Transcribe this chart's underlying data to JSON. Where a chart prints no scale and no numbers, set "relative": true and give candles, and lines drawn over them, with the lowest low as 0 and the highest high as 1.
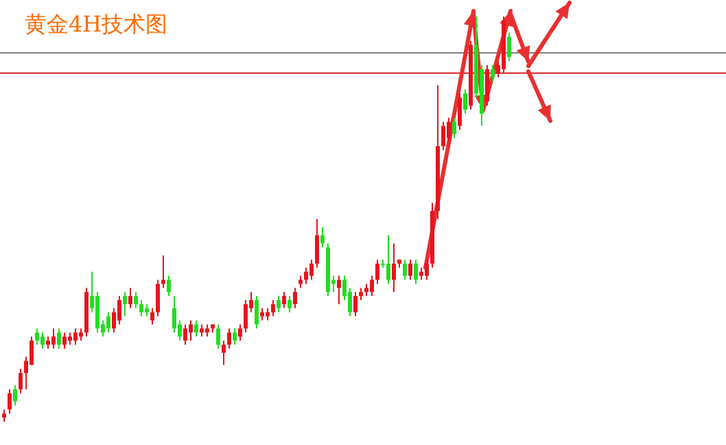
{
  "chart_data": {
    "type": "candlestick",
    "title": "黄金4H技术图",
    "relative": true,
    "categories": [
      null,
      null,
      null,
      null,
      null,
      null,
      null,
      null,
      null,
      null,
      null,
      null,
      null,
      null,
      null,
      null,
      null,
      null,
      null,
      null,
      null,
      null,
      null,
      null,
      null,
      null,
      null,
      null,
      null,
      null,
      null,
      null,
      null,
      null,
      null,
      null,
      null,
      null,
      null,
      null,
      null,
      null,
      null,
      null,
      null,
      null,
      null,
      null,
      null,
      null,
      null,
      null,
      null,
      null,
      null,
      null,
      null,
      null,
      null,
      null,
      null,
      null,
      null,
      null,
      null,
      null,
      null,
      null,
      null,
      null,
      null,
      null,
      null,
      null,
      null,
      null,
      null,
      null,
      null,
      null,
      null,
      null,
      null,
      null,
      null,
      null,
      null,
      null,
      null,
      null,
      null,
      null,
      null
    ],
    "ohlc": [
      [
        0.01,
        0.03,
        0,
        0.02
      ],
      [
        0.03,
        0.08,
        0.02,
        0.07
      ],
      [
        0.08,
        0.09,
        0.04,
        0.05
      ],
      [
        0.08,
        0.13,
        0.07,
        0.12
      ],
      [
        0.12,
        0.16,
        0.08,
        0.15
      ],
      [
        0.14,
        0.21,
        0.14,
        0.2
      ],
      [
        0.22,
        0.23,
        0.19,
        0.2
      ],
      [
        0.21,
        0.22,
        0.18,
        0.19
      ],
      [
        0.19,
        0.21,
        0.18,
        0.2
      ],
      [
        0.19,
        0.23,
        0.18,
        0.21
      ],
      [
        0.22,
        0.23,
        0.18,
        0.19
      ],
      [
        0.19,
        0.22,
        0.18,
        0.21
      ],
      [
        0.2,
        0.22,
        0.19,
        0.21
      ],
      [
        0.2,
        0.23,
        0.19,
        0.22
      ],
      [
        0.21,
        0.23,
        0.2,
        0.22
      ],
      [
        0.22,
        0.33,
        0.21,
        0.32
      ],
      [
        0.31,
        0.37,
        0.27,
        0.28
      ],
      [
        0.31,
        0.32,
        0.22,
        0.23
      ],
      [
        0.24,
        0.25,
        0.21,
        0.22
      ],
      [
        0.26,
        0.27,
        0.22,
        0.23
      ],
      [
        0.23,
        0.28,
        0.22,
        0.27
      ],
      [
        0.25,
        0.31,
        0.24,
        0.3
      ],
      [
        0.31,
        0.32,
        0.26,
        0.29
      ],
      [
        0.29,
        0.33,
        0.28,
        0.31
      ],
      [
        0.31,
        0.32,
        0.28,
        0.29
      ],
      [
        0.29,
        0.3,
        0.26,
        0.27
      ],
      [
        0.28,
        0.29,
        0.26,
        0.27
      ],
      [
        0.25,
        0.28,
        0.24,
        0.27
      ],
      [
        0.27,
        0.35,
        0.26,
        0.34
      ],
      [
        0.34,
        0.41,
        0.33,
        0.35
      ],
      [
        0.35,
        0.36,
        0.31,
        0.32
      ],
      [
        0.28,
        0.31,
        0.22,
        0.23
      ],
      [
        0.24,
        0.25,
        0.2,
        0.21
      ],
      [
        0.2,
        0.24,
        0.19,
        0.23
      ],
      [
        0.22,
        0.25,
        0.2,
        0.24
      ],
      [
        0.24,
        0.25,
        0.21,
        0.22
      ],
      [
        0.22,
        0.24,
        0.21,
        0.23
      ],
      [
        0.22,
        0.24,
        0.21,
        0.23
      ],
      [
        0.23,
        0.24,
        0.22,
        0.24
      ],
      [
        0.23,
        0.24,
        0.18,
        0.19
      ],
      [
        0.17,
        0.2,
        0.14,
        0.19
      ],
      [
        0.19,
        0.23,
        0.18,
        0.22
      ],
      [
        0.22,
        0.23,
        0.19,
        0.2
      ],
      [
        0.21,
        0.24,
        0.2,
        0.23
      ],
      [
        0.23,
        0.3,
        0.22,
        0.29
      ],
      [
        0.28,
        0.32,
        0.27,
        0.3
      ],
      [
        0.3,
        0.31,
        0.23,
        0.24
      ],
      [
        0.26,
        0.28,
        0.25,
        0.27
      ],
      [
        0.26,
        0.28,
        0.25,
        0.27
      ],
      [
        0.27,
        0.3,
        0.26,
        0.29
      ],
      [
        0.3,
        0.31,
        0.27,
        0.28
      ],
      [
        0.29,
        0.32,
        0.28,
        0.31
      ],
      [
        0.3,
        0.31,
        0.27,
        0.28
      ],
      [
        0.29,
        0.33,
        0.28,
        0.32
      ],
      [
        0.34,
        0.36,
        0.33,
        0.35
      ],
      [
        0.35,
        0.38,
        0.34,
        0.37
      ],
      [
        0.36,
        0.4,
        0.35,
        0.39
      ],
      [
        0.39,
        0.5,
        0.38,
        0.46
      ],
      [
        0.46,
        0.48,
        0.43,
        0.44
      ],
      [
        0.43,
        0.44,
        0.31,
        0.32
      ],
      [
        0.35,
        0.36,
        0.32,
        0.34
      ],
      [
        0.33,
        0.36,
        0.29,
        0.35
      ],
      [
        0.35,
        0.36,
        0.3,
        0.31
      ],
      [
        0.32,
        0.33,
        0.26,
        0.27
      ],
      [
        0.27,
        0.32,
        0.26,
        0.31
      ],
      [
        0.31,
        0.33,
        0.3,
        0.32
      ],
      [
        0.32,
        0.34,
        0.31,
        0.33
      ],
      [
        0.32,
        0.36,
        0.31,
        0.35
      ],
      [
        0.35,
        0.4,
        0.34,
        0.39
      ],
      [
        0.39,
        0.4,
        0.38,
        0.39
      ],
      [
        0.39,
        0.46,
        0.34,
        0.35
      ],
      [
        0.35,
        0.44,
        0.32,
        0.39
      ],
      [
        0.39,
        0.4,
        0.38,
        0.4
      ],
      [
        0.39,
        0.4,
        0.35,
        0.36
      ],
      [
        0.36,
        0.4,
        0.35,
        0.39
      ],
      [
        0.39,
        0.4,
        0.34,
        0.35
      ],
      [
        0.36,
        0.38,
        0.35,
        0.37
      ],
      [
        0.36,
        0.4,
        0.35,
        0.39
      ],
      [
        0.39,
        0.54,
        0.38,
        0.52
      ],
      [
        0.52,
        0.83,
        0.5,
        0.68
      ],
      [
        0.68,
        0.74,
        0.67,
        0.73
      ],
      [
        0.7,
        0.75,
        0.69,
        0.74
      ],
      [
        0.74,
        0.75,
        0.7,
        0.71
      ],
      [
        0.73,
        0.81,
        0.72,
        0.8
      ],
      [
        0.81,
        0.82,
        0.76,
        0.77
      ],
      [
        0.78,
        0.94,
        0.77,
        0.93
      ],
      [
        0.93,
        1,
        0.8,
        0.81
      ],
      [
        0.87,
        0.88,
        0.73,
        0.76
      ],
      [
        0.79,
        0.88,
        0.78,
        0.87
      ],
      [
        0.87,
        0.88,
        0.84,
        0.85
      ],
      [
        0.86,
        0.89,
        0.85,
        0.88
      ],
      [
        0.87,
        1,
        0.86,
        0.99
      ],
      [
        0.95,
        0.96,
        0.89,
        0.9
      ]
    ],
    "colors": [
      "#e8141e",
      "#e8141e",
      "#22dd22",
      "#e8141e",
      "#e8141e",
      "#e8141e",
      "#22dd22",
      "#22dd22",
      "#e8141e",
      "#e8141e",
      "#22dd22",
      "#e8141e",
      "#e8141e",
      "#e8141e",
      "#e8141e",
      "#e8141e",
      "#22dd22",
      "#22dd22",
      "#22dd22",
      "#22dd22",
      "#e8141e",
      "#e8141e",
      "#22dd22",
      "#e8141e",
      "#22dd22",
      "#22dd22",
      "#22dd22",
      "#e8141e",
      "#e8141e",
      "#e8141e",
      "#22dd22",
      "#22dd22",
      "#22dd22",
      "#e8141e",
      "#e8141e",
      "#22dd22",
      "#e8141e",
      "#e8141e",
      "#e8141e",
      "#22dd22",
      "#e8141e",
      "#e8141e",
      "#22dd22",
      "#e8141e",
      "#e8141e",
      "#e8141e",
      "#22dd22",
      "#e8141e",
      "#e8141e",
      "#e8141e",
      "#22dd22",
      "#e8141e",
      "#22dd22",
      "#e8141e",
      "#e8141e",
      "#e8141e",
      "#e8141e",
      "#e8141e",
      "#22dd22",
      "#22dd22",
      "#22dd22",
      "#e8141e",
      "#22dd22",
      "#22dd22",
      "#e8141e",
      "#e8141e",
      "#e8141e",
      "#e8141e",
      "#e8141e",
      "#22dd22",
      "#22dd22",
      "#e8141e",
      "#e8141e",
      "#22dd22",
      "#e8141e",
      "#22dd22",
      "#e8141e",
      "#e8141e",
      "#e8141e",
      "#e8141e",
      "#e8141e",
      "#e8141e",
      "#22dd22",
      "#e8141e",
      "#22dd22",
      "#e8141e",
      "#22dd22",
      "#22dd22",
      "#e8141e",
      "#22dd22",
      "#e8141e",
      "#e8141e",
      "#22dd22"
    ],
    "ref_lines": [
      {
        "axis": "y",
        "value": 0.91,
        "color": "#808080"
      },
      {
        "axis": "y",
        "value": 0.86,
        "color": "#d21e1e"
      }
    ]
  }
}
